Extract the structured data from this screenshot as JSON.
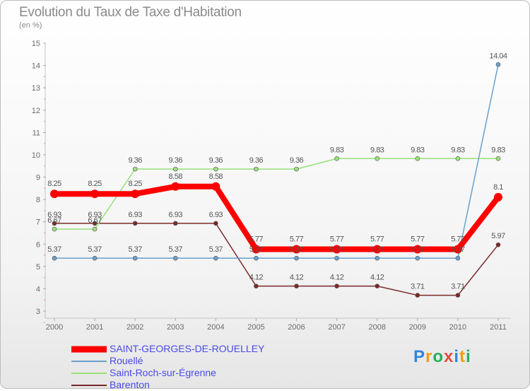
{
  "chart_data": {
    "type": "line",
    "title": "Evolution du Taux de Taxe d'Habitation",
    "ylabel": "(en %)",
    "xlabel": "",
    "ylim": [
      3,
      15
    ],
    "yticks": [
      "3",
      "4",
      "5",
      "6",
      "7",
      "8",
      "9",
      "10",
      "11",
      "12",
      "13",
      "14",
      "15"
    ],
    "categories": [
      "2000",
      "2001",
      "2002",
      "2003",
      "2004",
      "2005",
      "2006",
      "2007",
      "2008",
      "2009",
      "2010",
      "2011"
    ],
    "series": [
      {
        "name": "SAINT-GEORGES-DE-ROUELLEY",
        "color": "#ff0000",
        "values": [
          8.25,
          8.25,
          8.25,
          8.58,
          8.58,
          5.77,
          5.77,
          5.77,
          5.77,
          5.77,
          5.77,
          8.1
        ],
        "labels": [
          "8.25",
          "8.25",
          "8.25",
          "8.58",
          "8.58",
          "5.77",
          "5.77",
          "5.77",
          "5.77",
          "5.77",
          "5.77",
          "8.1"
        ]
      },
      {
        "name": "Rouellé",
        "color": "#6aa0cc",
        "values": [
          5.37,
          5.37,
          5.37,
          5.37,
          5.37,
          5.37,
          5.37,
          5.37,
          5.37,
          5.37,
          5.37,
          14.04
        ],
        "labels": [
          "5.37",
          "5.37",
          "5.37",
          "5.37",
          "5.37",
          "5.37",
          "5.37",
          "5.37",
          "5.37",
          "5.37",
          "5.37",
          "14.04"
        ]
      },
      {
        "name": "Saint-Roch-sur-Égrenne",
        "color": "#99e07a",
        "values": [
          6.67,
          6.67,
          9.36,
          9.36,
          9.36,
          9.36,
          9.36,
          9.83,
          9.83,
          9.83,
          9.83,
          9.83
        ],
        "labels": [
          "6.67",
          "6.67",
          "9.36",
          "9.36",
          "9.36",
          "9.36",
          "9.36",
          "9.83",
          "9.83",
          "9.83",
          "9.83",
          "9.83"
        ]
      },
      {
        "name": "Barenton",
        "color": "#7a2a2a",
        "values": [
          6.93,
          6.93,
          6.93,
          6.93,
          6.93,
          4.12,
          4.12,
          4.12,
          4.12,
          3.71,
          3.71,
          5.97
        ],
        "labels": [
          "6.93",
          "6.93",
          "6.93",
          "6.93",
          "6.93",
          "4.12",
          "4.12",
          "4.12",
          "4.12",
          "3.71",
          "3.71",
          "5.97"
        ]
      }
    ],
    "grid": false,
    "legend_position": "bottom-left"
  },
  "logo": {
    "text": "Proxiti",
    "letters": [
      "P",
      "r",
      "o",
      "x",
      "i",
      "t",
      "i"
    ],
    "colors": [
      "#2e86de",
      "#f39c12",
      "#27ae60",
      "#e74c3c",
      "#2e86de",
      "#f39c12",
      "#27ae60"
    ]
  }
}
